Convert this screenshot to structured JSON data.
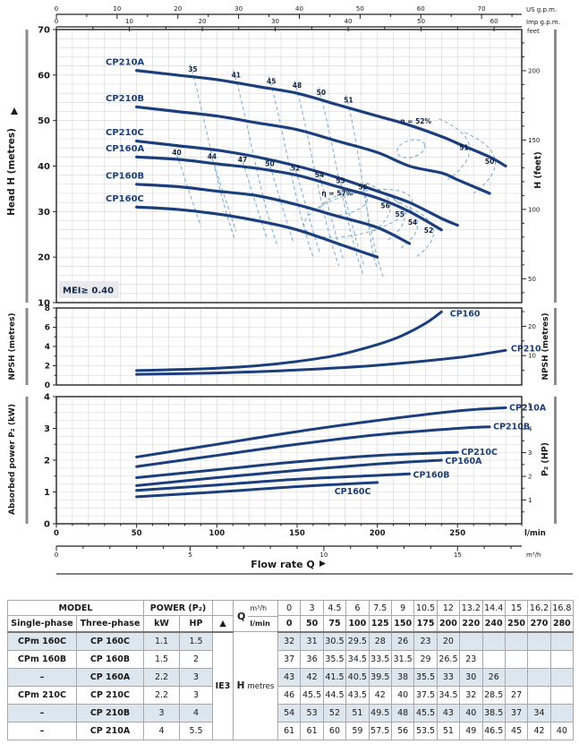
{
  "colors": {
    "curve": "#1b3f7d",
    "contour": "#78aad2",
    "grid": "#d4d4d4",
    "frame": "#222222",
    "text": "#1a1a1a",
    "table_alt_row": "#dce6ef",
    "mei_bg": "#e8eaed",
    "side_bar": "#8c8c8c"
  },
  "top_axes": {
    "us": {
      "label": "US g.p.m.",
      "tick_labels": [
        0,
        10,
        20,
        30,
        40,
        50,
        60,
        70
      ],
      "minor_step": 5,
      "lmin_per_unit": 3.7854,
      "max": 76
    },
    "imp": {
      "label": "Imp g.p.m.",
      "tick_labels": [
        0,
        10,
        20,
        30,
        40,
        50,
        60
      ],
      "minor_step": 5,
      "lmin_per_unit": 4.5461,
      "max": 63
    }
  },
  "chart_data": [
    {
      "type": "line",
      "id": "hq",
      "title": "Head H vs Flow rate Q",
      "ylabel_left": "Head H (metres)",
      "ylabel_right": "H (feet)",
      "right_unit_note": "feet",
      "ylim": [
        10,
        70
      ],
      "yticks": [
        10,
        20,
        30,
        40,
        50,
        60,
        70
      ],
      "ygrid_step": 2,
      "feet_ticks": [
        50,
        100,
        150,
        200
      ],
      "feet_minor_step": 10,
      "xlim_lmin": [
        0,
        290
      ],
      "xgrid_step": 10,
      "mei_note": "MEI≥ 0.40",
      "series": [
        {
          "name": "CP210A",
          "q": [
            50,
            75,
            100,
            125,
            150,
            175,
            200,
            220,
            240,
            250,
            270,
            280
          ],
          "h": [
            61,
            60,
            59,
            57.5,
            56,
            53.5,
            51,
            49,
            46.5,
            45,
            42,
            40
          ]
        },
        {
          "name": "CP210B",
          "q": [
            50,
            75,
            100,
            125,
            150,
            175,
            200,
            220,
            240,
            250,
            270
          ],
          "h": [
            53,
            52,
            51,
            49.5,
            48,
            45.5,
            43,
            40,
            38.5,
            37,
            34
          ]
        },
        {
          "name": "CP210C",
          "q": [
            50,
            75,
            100,
            125,
            150,
            175,
            200,
            220,
            240,
            250
          ],
          "h": [
            45.5,
            44.5,
            43.5,
            42,
            40,
            37.5,
            34.5,
            32,
            28.5,
            27
          ]
        },
        {
          "name": "CP160A",
          "q": [
            50,
            75,
            100,
            125,
            150,
            175,
            200,
            220,
            240
          ],
          "h": [
            42,
            41.5,
            40.5,
            39.5,
            38,
            35.5,
            33,
            30,
            26
          ]
        },
        {
          "name": "CP160B",
          "q": [
            50,
            75,
            100,
            125,
            150,
            175,
            200,
            220
          ],
          "h": [
            36,
            35.5,
            34.5,
            33.5,
            31.5,
            29,
            26.5,
            23
          ]
        },
        {
          "name": "CP160C",
          "q": [
            50,
            75,
            100,
            125,
            150,
            175,
            200
          ],
          "h": [
            31,
            30.5,
            29.5,
            28,
            26,
            23,
            20
          ]
        }
      ],
      "efficiency": {
        "upper_curve_labels": {
          "on": "CP210A",
          "items": [
            [
              35,
              85
            ],
            [
              41,
              112
            ],
            [
              45,
              134
            ],
            [
              48,
              150
            ],
            [
              50,
              165
            ],
            [
              51,
              182
            ]
          ]
        },
        "lower_curve_labels": {
          "on": "CP160A",
          "items": [
            [
              40,
              75
            ],
            [
              44,
              97
            ],
            [
              47,
              116
            ],
            [
              50,
              133
            ],
            [
              52,
              149
            ],
            [
              54,
              164
            ],
            [
              55,
              177
            ],
            [
              56,
              191
            ]
          ]
        },
        "upper_closing_labels": [
          [
            51,
            254,
            43.5
          ],
          [
            50,
            270,
            40.5
          ]
        ],
        "lower_closing_labels": [
          [
            56,
            205,
            30.8
          ],
          [
            55,
            214,
            28.9
          ],
          [
            54,
            222,
            27.1
          ],
          [
            52,
            232,
            25.3
          ]
        ],
        "centers": [
          {
            "text": "η = 52%",
            "q": 224,
            "h": 49.3
          },
          {
            "text": "η = 57%",
            "q": 175,
            "h": 33.5
          }
        ]
      }
    },
    {
      "type": "line",
      "id": "npsh",
      "ylabel_left": "NPSH (metres)",
      "ylabel_right": "NPSH (metres)",
      "ylim": [
        0,
        8
      ],
      "yticks_left": [
        0,
        2,
        4,
        6,
        8
      ],
      "yticks_right": [
        10,
        20
      ],
      "right_minor_step": 5,
      "feet_per_metre": 3.2808,
      "series": [
        {
          "name": "CP160",
          "q": [
            50,
            75,
            100,
            125,
            150,
            175,
            200,
            215,
            230,
            240
          ],
          "v": [
            1.5,
            1.6,
            1.75,
            2.0,
            2.45,
            3.1,
            4.2,
            5.1,
            6.4,
            7.6
          ]
        },
        {
          "name": "CP210",
          "q": [
            50,
            100,
            150,
            200,
            250,
            280
          ],
          "v": [
            1.1,
            1.25,
            1.55,
            2.05,
            2.85,
            3.6
          ]
        }
      ]
    },
    {
      "type": "line",
      "id": "power",
      "ylabel_left": "Absorbed power P₂ (kW)",
      "ylabel_right": "P₂ (HP)",
      "ylim": [
        0,
        4
      ],
      "yticks_left": [
        0,
        1,
        2,
        3,
        4
      ],
      "ygrid_step": 0.25,
      "yticks_right": [
        1,
        2,
        3,
        4,
        5
      ],
      "right_minor_step": 0.5,
      "kw_per_hp": 0.7457,
      "series": [
        {
          "name": "CP210A",
          "q": [
            50,
            100,
            150,
            200,
            250,
            280
          ],
          "v": [
            2.1,
            2.5,
            2.9,
            3.25,
            3.55,
            3.65
          ]
        },
        {
          "name": "CP210B",
          "q": [
            50,
            100,
            150,
            200,
            250,
            270
          ],
          "v": [
            1.8,
            2.15,
            2.5,
            2.8,
            3.0,
            3.05
          ]
        },
        {
          "name": "CP210C",
          "q": [
            50,
            100,
            150,
            200,
            250
          ],
          "v": [
            1.45,
            1.7,
            1.95,
            2.15,
            2.25
          ]
        },
        {
          "name": "CP160A",
          "q": [
            50,
            100,
            150,
            200,
            240
          ],
          "v": [
            1.2,
            1.45,
            1.68,
            1.88,
            2.0
          ]
        },
        {
          "name": "CP160B",
          "q": [
            50,
            100,
            150,
            200,
            220
          ],
          "v": [
            1.05,
            1.22,
            1.4,
            1.52,
            1.57
          ]
        },
        {
          "name": "CP160C",
          "q": [
            50,
            100,
            150,
            200
          ],
          "v": [
            0.85,
            1.0,
            1.17,
            1.3
          ]
        }
      ],
      "x_axis": {
        "lmin_ticks": [
          0,
          50,
          100,
          150,
          200,
          250
        ],
        "lmin_label": "l/min",
        "minor_step": 10
      }
    }
  ],
  "flow_axis_m3h": {
    "ticks": [
      0,
      5,
      10,
      15
    ],
    "minor_step": 1,
    "label": "m³/h",
    "lmin_per_m3h": 16.6667,
    "max": 17
  },
  "flow_rate_label": "Flow rate Q",
  "table": {
    "header": {
      "model": "MODEL",
      "single": "Single-phase",
      "three": "Three-phase",
      "power": "POWER (P₂)",
      "kw": "kW",
      "hp": "HP",
      "tri": "▲",
      "q": "Q",
      "m3h": "m³/h",
      "lmin": "l/min",
      "ie3": "IE3",
      "h_bold": "H",
      "h_unit": "metres"
    },
    "q_m3h": [
      "0",
      "3",
      "4.5",
      "6",
      "7.5",
      "9",
      "10.5",
      "12",
      "13.2",
      "14.4",
      "15",
      "16.2",
      "16.8"
    ],
    "q_lmin": [
      "0",
      "50",
      "75",
      "100",
      "125",
      "150",
      "175",
      "200",
      "220",
      "240",
      "250",
      "270",
      "280"
    ],
    "rows": [
      {
        "single": "CPm 160C",
        "three": "CP 160C",
        "kw": "1.1",
        "hp": "1.5",
        "h": [
          "32",
          "31",
          "30.5",
          "29.5",
          "28",
          "26",
          "23",
          "20",
          "",
          "",
          "",
          "",
          ""
        ]
      },
      {
        "single": "CPm 160B",
        "three": "CP 160B",
        "kw": "1.5",
        "hp": "2",
        "h": [
          "37",
          "36",
          "35.5",
          "34.5",
          "33.5",
          "31.5",
          "29",
          "26.5",
          "23",
          "",
          "",
          "",
          ""
        ]
      },
      {
        "single": "–",
        "three": "CP 160A",
        "kw": "2.2",
        "hp": "3",
        "h": [
          "43",
          "42",
          "41.5",
          "40.5",
          "39.5",
          "38",
          "35.5",
          "33",
          "30",
          "26",
          "",
          "",
          ""
        ]
      },
      {
        "single": "CPm 210C",
        "three": "CP 210C",
        "kw": "2.2",
        "hp": "3",
        "h": [
          "46",
          "45.5",
          "44.5",
          "43.5",
          "42",
          "40",
          "37.5",
          "34.5",
          "32",
          "28.5",
          "27",
          "",
          ""
        ]
      },
      {
        "single": "–",
        "three": "CP 210B",
        "kw": "3",
        "hp": "4",
        "h": [
          "54",
          "53",
          "52",
          "51",
          "49.5",
          "48",
          "45.5",
          "43",
          "40",
          "38.5",
          "37",
          "34",
          ""
        ]
      },
      {
        "single": "–",
        "three": "CP 210A",
        "kw": "4",
        "hp": "5.5",
        "h": [
          "61",
          "61",
          "60",
          "59",
          "57.5",
          "56",
          "53.5",
          "51",
          "49",
          "46.5",
          "45",
          "42",
          "40"
        ]
      }
    ]
  }
}
